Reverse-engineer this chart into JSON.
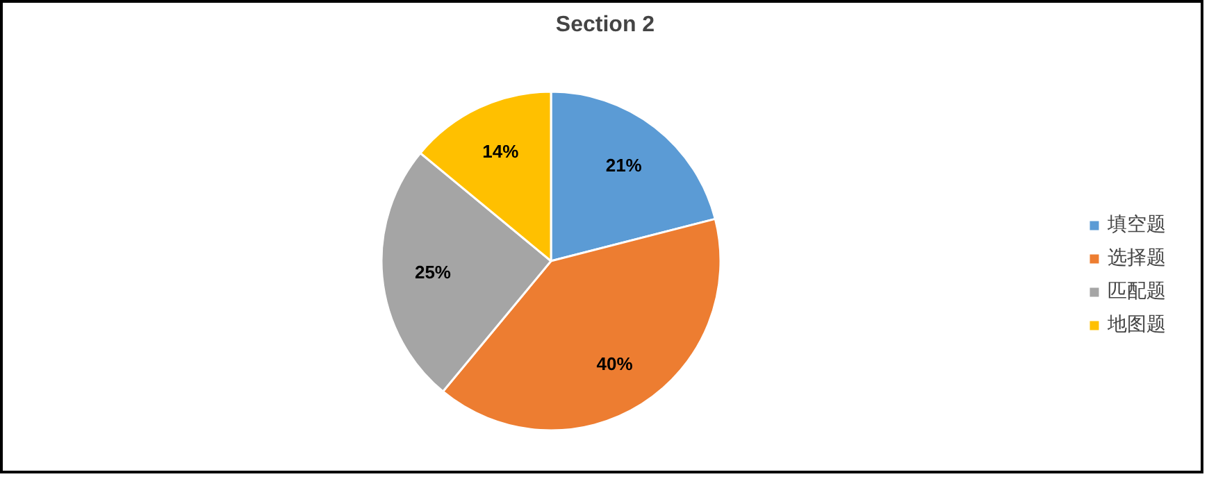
{
  "chart_data": {
    "type": "pie",
    "title": "Section 2",
    "categories": [
      "填空题",
      "选择题",
      "匹配题",
      "地图题"
    ],
    "values": [
      21,
      40,
      25,
      14
    ],
    "colors": [
      "#5b9bd5",
      "#ed7d31",
      "#a5a5a5",
      "#ffc000"
    ],
    "value_labels": [
      "21%",
      "40%",
      "25%",
      "14%"
    ],
    "legend": "right"
  }
}
